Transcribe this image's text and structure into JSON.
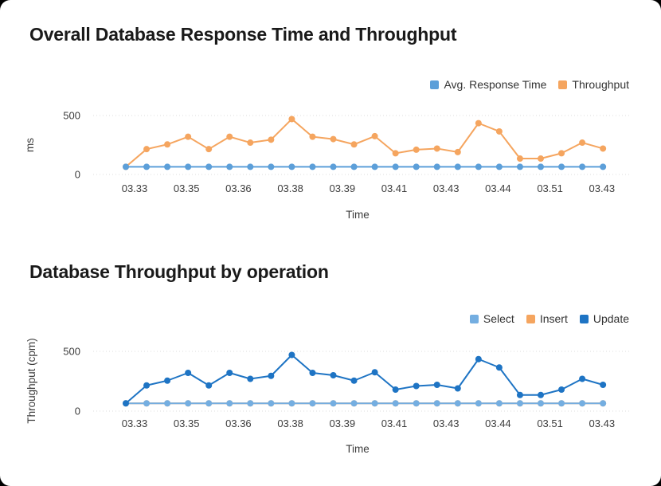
{
  "chart_data": [
    {
      "type": "line",
      "title": "Overall Database Response Time and Throughput",
      "xlabel": "Time",
      "ylabel": "ms",
      "ylim": [
        0,
        500
      ],
      "yticks": [
        500,
        0
      ],
      "grid": "horizontal-dotted",
      "legend_position": "top-right",
      "x_categories": [
        "03.33",
        "03.35",
        "03.36",
        "03.38",
        "03.39",
        "03.41",
        "03.43",
        "03.44",
        "03.51",
        "03.43"
      ],
      "series": [
        {
          "name": "Avg. Response Time",
          "color": "#5C9FD9",
          "z": 1,
          "values": [
            65,
            65,
            65,
            65,
            65,
            65,
            65,
            65,
            65,
            65,
            65,
            65,
            65,
            65,
            65,
            65,
            65,
            65,
            65,
            65,
            65,
            65,
            65,
            65
          ]
        },
        {
          "name": "Throughput",
          "color": "#F5A55F",
          "z": 0,
          "values": [
            65,
            215,
            255,
            320,
            215,
            320,
            270,
            295,
            470,
            320,
            300,
            255,
            325,
            180,
            210,
            220,
            190,
            435,
            365,
            135,
            135,
            180,
            270,
            220
          ]
        }
      ]
    },
    {
      "type": "line",
      "title": "Database Throughput by operation",
      "xlabel": "Time",
      "ylabel": "Throughput (cpm)",
      "ylim": [
        0,
        500
      ],
      "yticks": [
        500,
        0
      ],
      "grid": "horizontal-dotted",
      "legend_position": "top-right",
      "x_categories": [
        "03.33",
        "03.35",
        "03.36",
        "03.38",
        "03.39",
        "03.41",
        "03.43",
        "03.44",
        "03.51",
        "03.43"
      ],
      "series": [
        {
          "name": "Select",
          "color": "#74AEE1",
          "z": 1,
          "values": [
            65,
            65,
            65,
            65,
            65,
            65,
            65,
            65,
            65,
            65,
            65,
            65,
            65,
            65,
            65,
            65,
            65,
            65,
            65,
            65,
            65,
            65,
            65,
            65
          ]
        },
        {
          "name": "Insert",
          "color": "#F5A55F",
          "z": 0,
          "values": [
            65,
            65,
            65,
            65,
            65,
            65,
            65,
            65,
            65,
            65,
            65,
            65,
            65,
            65,
            65,
            65,
            65,
            65,
            65,
            65,
            65,
            65,
            65,
            65
          ]
        },
        {
          "name": "Update",
          "color": "#1E74C4",
          "z": 2,
          "values": [
            65,
            215,
            255,
            320,
            215,
            320,
            270,
            295,
            470,
            320,
            300,
            255,
            325,
            180,
            210,
            220,
            190,
            435,
            365,
            135,
            135,
            180,
            270,
            220
          ]
        }
      ]
    }
  ]
}
